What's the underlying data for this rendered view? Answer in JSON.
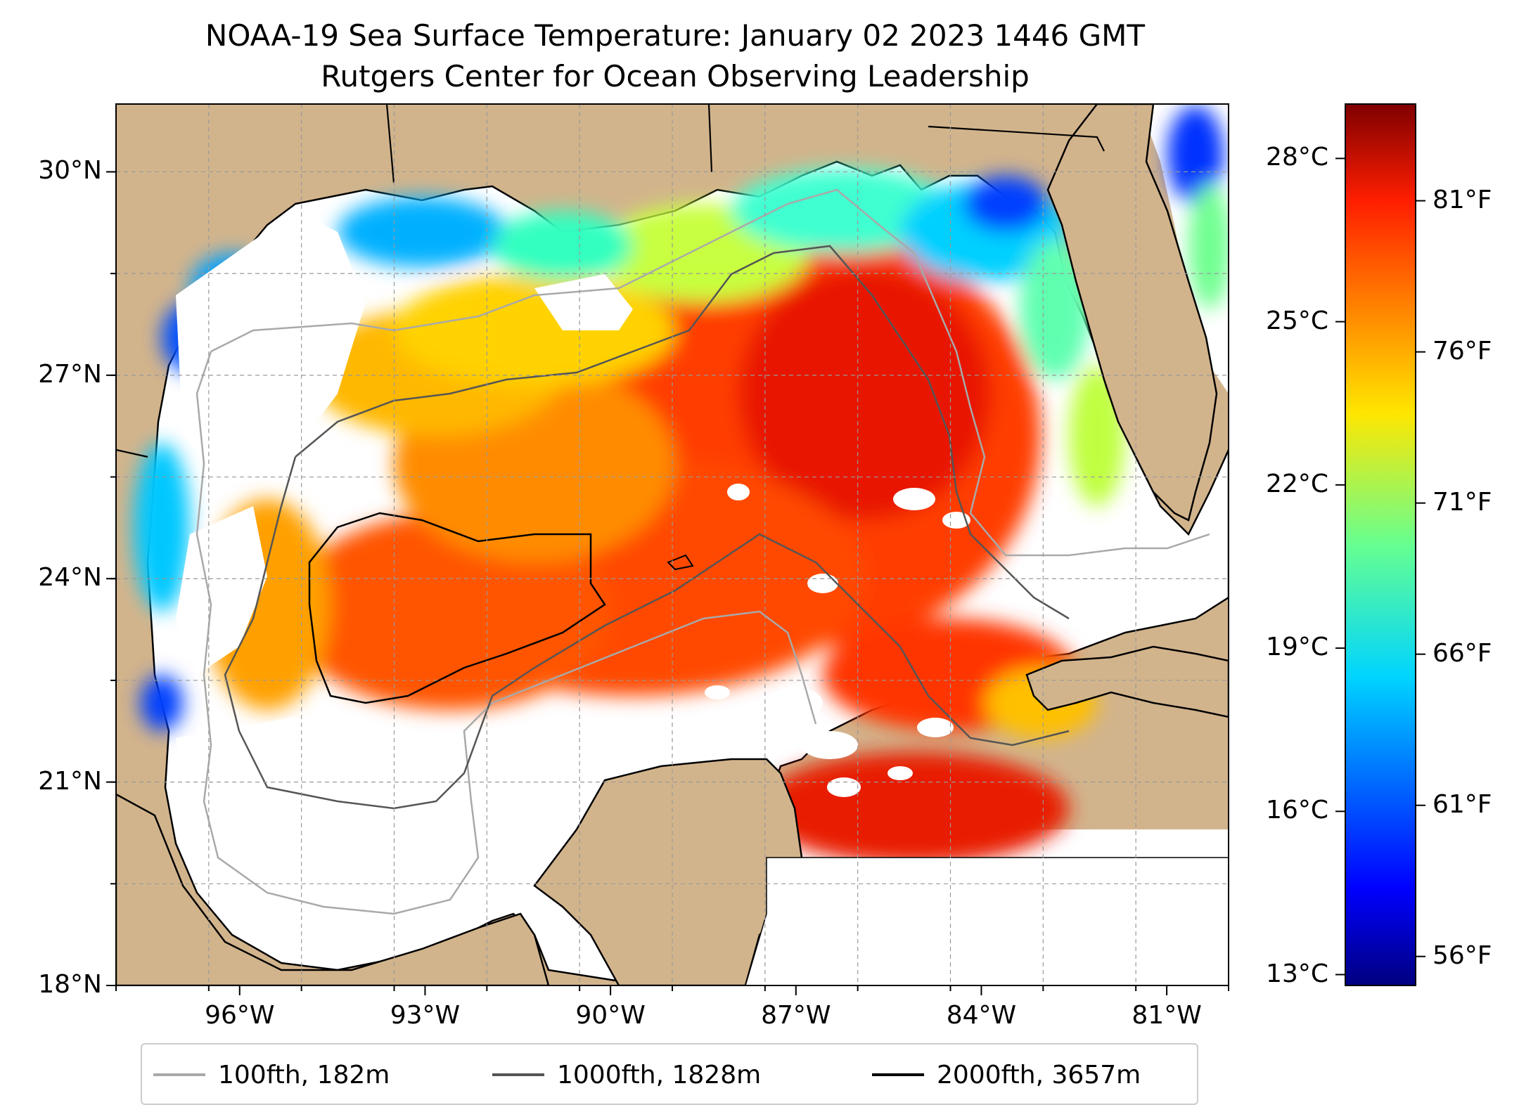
{
  "title": {
    "line1": "NOAA-19 Sea Surface Temperature: January 02 2023 1446 GMT",
    "line2": "Rutgers Center for Ocean Observing Leadership"
  },
  "map": {
    "extent": {
      "lon_min": -98.0,
      "lon_max": -80.0,
      "lat_min": 18.0,
      "lat_max": 31.0
    },
    "land_color": "#d2b48c",
    "no_data_color": "#ffffff",
    "gridlines": true,
    "lon_ticks": [
      {
        "value": -96,
        "label": "96°W"
      },
      {
        "value": -93,
        "label": "93°W"
      },
      {
        "value": -90,
        "label": "90°W"
      },
      {
        "value": -87,
        "label": "87°W"
      },
      {
        "value": -84,
        "label": "84°W"
      },
      {
        "value": -81,
        "label": "81°W"
      }
    ],
    "lat_ticks": [
      {
        "value": 30,
        "label": "30°N"
      },
      {
        "value": 27,
        "label": "27°N"
      },
      {
        "value": 24,
        "label": "24°N"
      },
      {
        "value": 21,
        "label": "21°N"
      },
      {
        "value": 18,
        "label": "18°N"
      }
    ]
  },
  "colorbar": {
    "colormap": "jet",
    "celsius_range": [
      12.8,
      29.0
    ],
    "celsius_ticks": [
      {
        "value": 13,
        "label": "13°C"
      },
      {
        "value": 16,
        "label": "16°C"
      },
      {
        "value": 19,
        "label": "19°C"
      },
      {
        "value": 22,
        "label": "22°C"
      },
      {
        "value": 25,
        "label": "25°C"
      },
      {
        "value": 28,
        "label": "28°C"
      }
    ],
    "fahrenheit_ticks": [
      {
        "value": 56,
        "label": "56°F"
      },
      {
        "value": 61,
        "label": "61°F"
      },
      {
        "value": 66,
        "label": "66°F"
      },
      {
        "value": 71,
        "label": "71°F"
      },
      {
        "value": 76,
        "label": "76°F"
      },
      {
        "value": 81,
        "label": "81°F"
      }
    ]
  },
  "legend": {
    "placement": "bottom-center",
    "items": [
      {
        "label": "100fth, 182m",
        "color": "#a9a9a9"
      },
      {
        "label": "1000fth, 1828m",
        "color": "#555555"
      },
      {
        "label": "2000fth, 3657m",
        "color": "#000000"
      }
    ]
  }
}
